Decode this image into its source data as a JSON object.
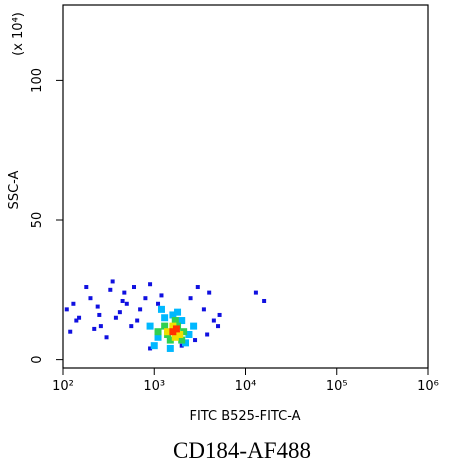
{
  "chart_data": {
    "type": "scatter",
    "xlabel": "FITC B525-FITC-A",
    "ylabel": "SSC-A",
    "y_multiplier": "(x 10⁴)",
    "caption": "CD184-AF488",
    "xscale": "log",
    "xlim": [
      100,
      1000000
    ],
    "xticks": [
      {
        "value": 100,
        "label": "10²"
      },
      {
        "value": 1000,
        "label": "10³"
      },
      {
        "value": 10000,
        "label": "10⁴"
      },
      {
        "value": 100000,
        "label": "10⁵"
      },
      {
        "value": 1000000,
        "label": "10⁶"
      }
    ],
    "ylim": [
      -3,
      127
    ],
    "yticks": [
      0,
      50,
      100
    ],
    "series": [
      {
        "color": "#1010e0",
        "x": [
          110,
          150,
          200,
          260,
          330,
          420,
          500,
          650,
          800,
          120,
          180,
          240,
          300,
          380,
          470,
          560,
          700,
          900,
          1100,
          2500,
          3000,
          3500,
          4000,
          4500,
          5000,
          140,
          220,
          350,
          600,
          1200,
          2800,
          3800,
          13000,
          16000,
          250,
          450,
          900,
          2000,
          5200,
          130
        ],
        "values": [
          18,
          15,
          22,
          12,
          25,
          17,
          20,
          14,
          22,
          10,
          26,
          19,
          8,
          15,
          24,
          12,
          18,
          27,
          20,
          22,
          26,
          18,
          24,
          14,
          12,
          14,
          11,
          28,
          26,
          23,
          7,
          9,
          24,
          21,
          16,
          21,
          4,
          5,
          16,
          20
        ]
      },
      {
        "color": "#00b8ff",
        "x": [
          900,
          1100,
          1300,
          1600,
          2000,
          2400,
          1000,
          1500,
          2200,
          2700,
          1200,
          1800
        ],
        "values": [
          12,
          8,
          15,
          16,
          14,
          9,
          5,
          4,
          6,
          12,
          18,
          17
        ]
      },
      {
        "color": "#30d050",
        "x": [
          1100,
          1300,
          1500,
          1800,
          2100,
          1400,
          1700,
          2000
        ],
        "values": [
          10,
          12,
          7,
          12,
          10,
          9,
          14,
          7
        ]
      },
      {
        "color": "#f0e000",
        "x": [
          1400,
          1600,
          1900,
          1700
        ],
        "values": [
          10,
          12,
          9,
          8
        ]
      },
      {
        "color": "#ff3000",
        "x": [
          1600,
          1750
        ],
        "values": [
          10,
          11
        ]
      }
    ]
  }
}
